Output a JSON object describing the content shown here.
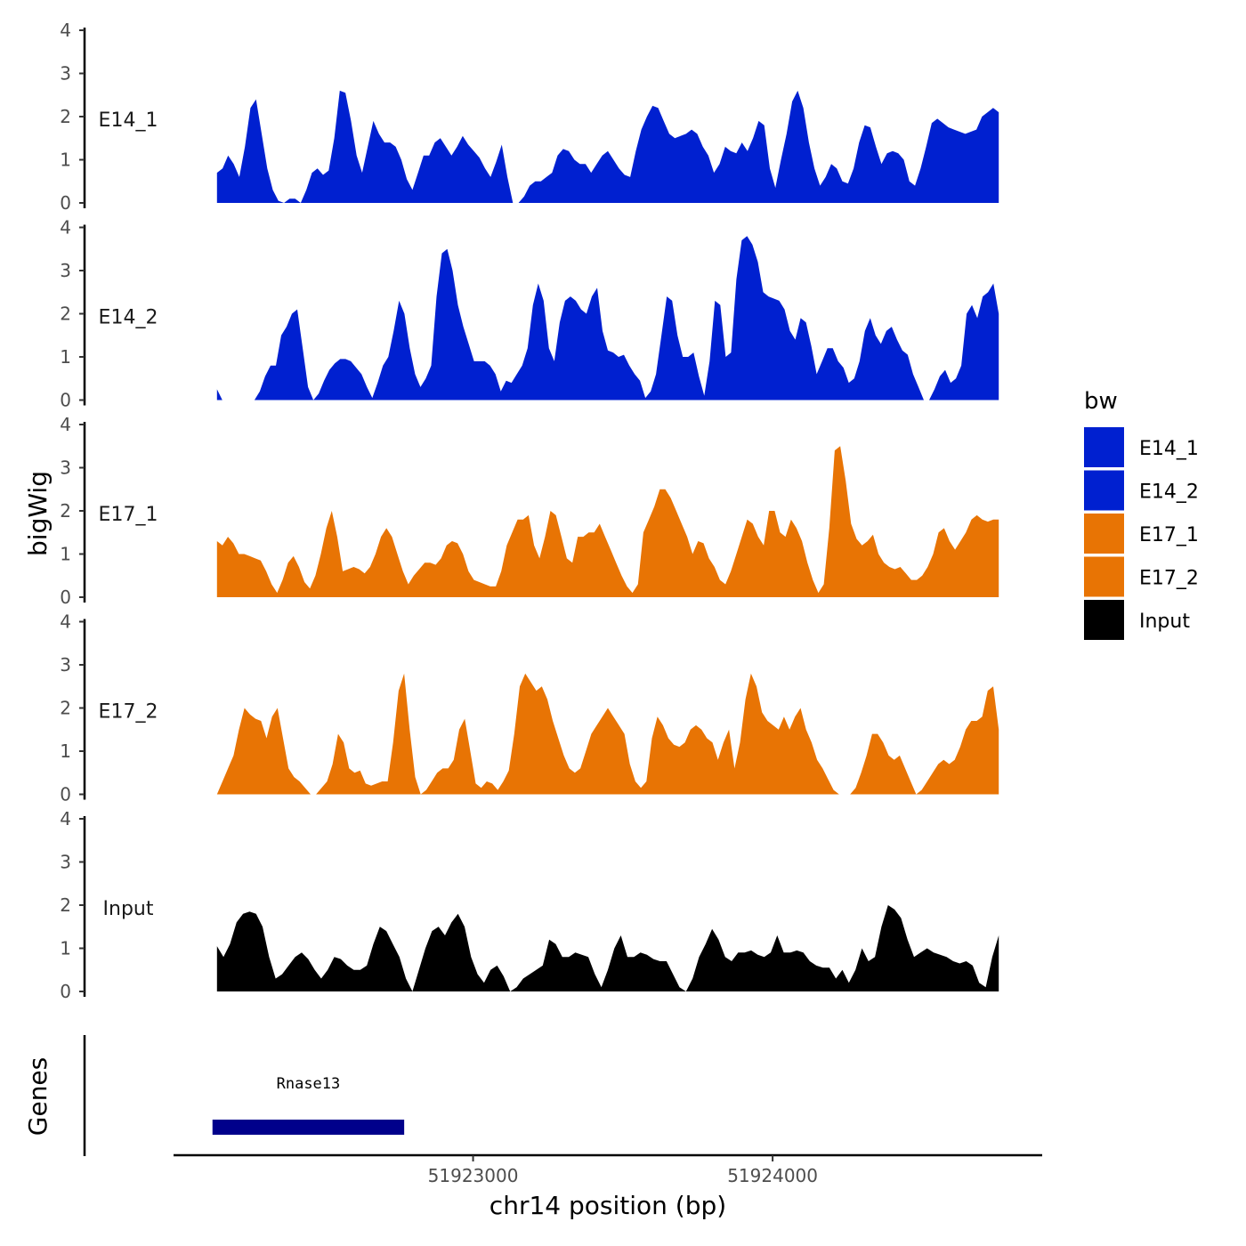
{
  "chart_data": {
    "type": "area",
    "y_axis_title": "bigWig",
    "genes_axis_title": "Genes",
    "x_axis_title": "chr14 position (bp)",
    "x_ticks": [
      51923000,
      51924000
    ],
    "x_tick_labels": [
      "51923000",
      "51924000"
    ],
    "xlim": [
      51922000,
      51924900
    ],
    "data_xrange": [
      51922145,
      51924755
    ],
    "ylim": [
      0,
      4
    ],
    "y_ticks": [
      "0",
      "1",
      "2",
      "3",
      "4"
    ],
    "legend": {
      "title": "bw",
      "entries": [
        {
          "label": "E14_1",
          "color": "#0020d0"
        },
        {
          "label": "E14_2",
          "color": "#0020d0"
        },
        {
          "label": "E17_1",
          "color": "#e87404"
        },
        {
          "label": "E17_2",
          "color": "#e87404"
        },
        {
          "label": "Input",
          "color": "#000000"
        }
      ]
    },
    "tracks": [
      {
        "name": "E14_1",
        "color": "#0020d0",
        "values": [
          0.7,
          0.8,
          1.1,
          0.9,
          0.6,
          1.3,
          2.2,
          2.4,
          1.6,
          0.8,
          0.3,
          0.05,
          0,
          0.1,
          0.1,
          0,
          0.3,
          0.7,
          0.8,
          0.65,
          0.75,
          1.5,
          2.6,
          2.55,
          1.9,
          1.1,
          0.7,
          1.3,
          1.9,
          1.6,
          1.4,
          1.4,
          1.3,
          1.0,
          0.55,
          0.3,
          0.7,
          1.1,
          1.1,
          1.4,
          1.5,
          1.3,
          1.1,
          1.3,
          1.55,
          1.35,
          1.2,
          1.05,
          0.8,
          0.6,
          0.95,
          1.35,
          0.6,
          0,
          0,
          0.15,
          0.4,
          0.5,
          0.5,
          0.6,
          0.7,
          1.1,
          1.25,
          1.2,
          1.0,
          0.9,
          0.9,
          0.7,
          0.9,
          1.1,
          1.2,
          1.0,
          0.8,
          0.65,
          0.6,
          1.2,
          1.7,
          2.0,
          2.25,
          2.2,
          1.9,
          1.6,
          1.5,
          1.55,
          1.6,
          1.7,
          1.6,
          1.3,
          1.1,
          0.7,
          0.9,
          1.3,
          1.2,
          1.15,
          1.4,
          1.2,
          1.5,
          1.9,
          1.8,
          0.8,
          0.35,
          1.0,
          1.6,
          2.35,
          2.6,
          2.2,
          1.4,
          0.8,
          0.4,
          0.6,
          0.9,
          0.8,
          0.5,
          0.45,
          0.8,
          1.4,
          1.8,
          1.75,
          1.3,
          0.9,
          1.15,
          1.2,
          1.15,
          1.0,
          0.5,
          0.4,
          0.8,
          1.3,
          1.85,
          1.95,
          1.85,
          1.75,
          1.7,
          1.65,
          1.6,
          1.65,
          1.7,
          2.0,
          2.1,
          2.2,
          2.1
        ]
      },
      {
        "name": "E14_2",
        "color": "#0020d0",
        "values": [
          0.25,
          0,
          0,
          0,
          0,
          0,
          0,
          0,
          0.2,
          0.55,
          0.8,
          0.8,
          1.5,
          1.7,
          2.0,
          2.1,
          1.2,
          0.3,
          0,
          0.15,
          0.45,
          0.7,
          0.85,
          0.95,
          0.95,
          0.9,
          0.75,
          0.6,
          0.3,
          0.05,
          0.4,
          0.8,
          1.0,
          1.6,
          2.3,
          2.0,
          1.2,
          0.6,
          0.3,
          0.5,
          0.8,
          2.4,
          3.4,
          3.5,
          3.0,
          2.2,
          1.7,
          1.3,
          0.9,
          0.9,
          0.9,
          0.8,
          0.6,
          0.2,
          0.45,
          0.4,
          0.6,
          0.8,
          1.2,
          2.2,
          2.7,
          2.3,
          1.2,
          0.9,
          1.8,
          2.3,
          2.4,
          2.3,
          2.1,
          2.0,
          2.4,
          2.6,
          1.6,
          1.15,
          1.1,
          1.0,
          1.05,
          0.8,
          0.6,
          0.45,
          0.05,
          0.2,
          0.6,
          1.5,
          2.4,
          2.3,
          1.5,
          1.0,
          1.0,
          1.1,
          0.55,
          0.1,
          0.9,
          2.3,
          2.2,
          1.0,
          1.1,
          2.8,
          3.7,
          3.8,
          3.6,
          3.2,
          2.5,
          2.4,
          2.35,
          2.3,
          2.1,
          1.6,
          1.4,
          1.9,
          1.8,
          1.25,
          0.6,
          0.9,
          1.2,
          1.2,
          0.9,
          0.75,
          0.4,
          0.5,
          0.9,
          1.6,
          1.9,
          1.5,
          1.3,
          1.6,
          1.7,
          1.4,
          1.15,
          1.05,
          0.6,
          0.3,
          0,
          0,
          0.25,
          0.55,
          0.7,
          0.4,
          0.5,
          0.8,
          2.0,
          2.2,
          1.9,
          2.4,
          2.5,
          2.7,
          2.0
        ]
      },
      {
        "name": "E17_1",
        "color": "#e87404",
        "values": [
          1.3,
          1.2,
          1.4,
          1.25,
          1.0,
          1.0,
          0.95,
          0.9,
          0.85,
          0.6,
          0.3,
          0.1,
          0.4,
          0.8,
          0.95,
          0.7,
          0.35,
          0.2,
          0.5,
          1.0,
          1.6,
          2.0,
          1.4,
          0.6,
          0.65,
          0.7,
          0.65,
          0.55,
          0.7,
          1.0,
          1.4,
          1.6,
          1.4,
          1.0,
          0.6,
          0.3,
          0.5,
          0.65,
          0.8,
          0.8,
          0.75,
          0.9,
          1.2,
          1.3,
          1.25,
          1.0,
          0.6,
          0.4,
          0.35,
          0.3,
          0.25,
          0.25,
          0.6,
          1.2,
          1.5,
          1.8,
          1.8,
          1.9,
          1.2,
          0.9,
          1.4,
          2.0,
          1.9,
          1.4,
          0.9,
          0.8,
          1.4,
          1.4,
          1.5,
          1.5,
          1.7,
          1.4,
          1.1,
          0.8,
          0.5,
          0.25,
          0.1,
          0.3,
          1.5,
          1.8,
          2.1,
          2.5,
          2.5,
          2.3,
          2.0,
          1.7,
          1.4,
          1.0,
          1.3,
          1.25,
          0.9,
          0.7,
          0.4,
          0.3,
          0.6,
          1.0,
          1.4,
          1.8,
          1.7,
          1.4,
          1.2,
          2.0,
          2.0,
          1.5,
          1.4,
          1.8,
          1.6,
          1.3,
          0.8,
          0.4,
          0.1,
          0.3,
          1.6,
          3.4,
          3.5,
          2.7,
          1.7,
          1.35,
          1.2,
          1.3,
          1.45,
          1.0,
          0.8,
          0.7,
          0.65,
          0.7,
          0.55,
          0.4,
          0.4,
          0.5,
          0.7,
          1.0,
          1.5,
          1.6,
          1.3,
          1.1,
          1.3,
          1.5,
          1.8,
          1.9,
          1.8,
          1.75,
          1.8,
          1.8
        ]
      },
      {
        "name": "E17_2",
        "color": "#e87404",
        "values": [
          0,
          0.3,
          0.6,
          0.9,
          1.5,
          2.0,
          1.85,
          1.75,
          1.7,
          1.3,
          1.8,
          2.0,
          1.3,
          0.6,
          0.4,
          0.3,
          0.15,
          0,
          0,
          0.15,
          0.3,
          0.7,
          1.4,
          1.2,
          0.6,
          0.5,
          0.55,
          0.25,
          0.2,
          0.25,
          0.3,
          0.3,
          1.2,
          2.4,
          2.8,
          1.5,
          0.4,
          0,
          0.1,
          0.3,
          0.5,
          0.6,
          0.6,
          0.8,
          1.5,
          1.75,
          1.0,
          0.25,
          0.15,
          0.3,
          0.25,
          0.1,
          0.3,
          0.55,
          1.4,
          2.5,
          2.8,
          2.6,
          2.4,
          2.5,
          2.2,
          1.7,
          1.3,
          0.9,
          0.6,
          0.5,
          0.6,
          1.0,
          1.4,
          1.6,
          1.8,
          2.0,
          1.8,
          1.6,
          1.4,
          0.7,
          0.3,
          0.15,
          0.3,
          1.3,
          1.8,
          1.6,
          1.3,
          1.15,
          1.1,
          1.2,
          1.5,
          1.6,
          1.5,
          1.3,
          1.2,
          0.8,
          1.2,
          1.5,
          0.6,
          1.2,
          2.2,
          2.8,
          2.5,
          1.9,
          1.7,
          1.6,
          1.5,
          1.8,
          1.5,
          1.8,
          2.0,
          1.5,
          1.2,
          0.8,
          0.6,
          0.35,
          0.1,
          0,
          0,
          0,
          0.15,
          0.5,
          0.9,
          1.4,
          1.4,
          1.2,
          0.9,
          0.8,
          0.9,
          0.6,
          0.3,
          0,
          0.1,
          0.3,
          0.5,
          0.7,
          0.8,
          0.7,
          0.8,
          1.1,
          1.5,
          1.7,
          1.7,
          1.8,
          2.4,
          2.5,
          1.5
        ]
      },
      {
        "name": "Input",
        "color": "#000000",
        "values": [
          1.05,
          0.8,
          1.1,
          1.6,
          1.8,
          1.85,
          1.8,
          1.5,
          0.8,
          0.3,
          0.4,
          0.6,
          0.8,
          0.9,
          0.75,
          0.5,
          0.3,
          0.5,
          0.8,
          0.75,
          0.6,
          0.5,
          0.5,
          0.6,
          1.1,
          1.5,
          1.4,
          1.1,
          0.8,
          0.3,
          0,
          0.5,
          1.0,
          1.4,
          1.5,
          1.3,
          1.6,
          1.8,
          1.5,
          0.8,
          0.4,
          0.2,
          0.5,
          0.6,
          0.35,
          0,
          0.1,
          0.3,
          0.4,
          0.5,
          0.6,
          1.2,
          1.1,
          0.8,
          0.8,
          0.9,
          0.85,
          0.8,
          0.4,
          0.1,
          0.5,
          1.0,
          1.3,
          0.8,
          0.8,
          0.9,
          0.85,
          0.75,
          0.7,
          0.7,
          0.4,
          0.1,
          0,
          0.3,
          0.8,
          1.1,
          1.45,
          1.2,
          0.8,
          0.7,
          0.9,
          0.9,
          0.95,
          0.85,
          0.8,
          0.9,
          1.3,
          0.9,
          0.9,
          0.95,
          0.9,
          0.7,
          0.6,
          0.55,
          0.55,
          0.3,
          0.5,
          0.2,
          0.5,
          1.0,
          0.7,
          0.8,
          1.5,
          2.0,
          1.9,
          1.7,
          1.2,
          0.8,
          0.9,
          1.0,
          0.9,
          0.85,
          0.8,
          0.7,
          0.65,
          0.7,
          0.6,
          0.2,
          0.1,
          0.8,
          1.3
        ]
      }
    ],
    "genes": [
      {
        "name": "Rnase13",
        "start": 51922130,
        "end": 51922770,
        "color": "#00008b"
      }
    ]
  }
}
